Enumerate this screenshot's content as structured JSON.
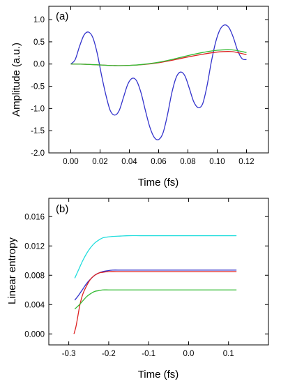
{
  "chart_data": [
    {
      "type": "line",
      "panel_label": "(a)",
      "xlabel": "Time (fs)",
      "ylabel": "Amplitude (a.u.)",
      "xlim": [
        -0.015,
        0.135
      ],
      "ylim": [
        -2.0,
        1.3
      ],
      "xticks": [
        0.0,
        0.02,
        0.04,
        0.06,
        0.08,
        0.1,
        0.12
      ],
      "xtick_labels": [
        "0.00",
        "0.02",
        "0.04",
        "0.06",
        "0.08",
        "0.10",
        "0.12"
      ],
      "yticks": [
        -2.0,
        -1.5,
        -1.0,
        -0.5,
        0.0,
        0.5,
        1.0
      ],
      "ytick_labels": [
        "-2.0",
        "-1.5",
        "-1.0",
        "-0.5",
        "0.0",
        "0.5",
        "1.0"
      ],
      "grid": false,
      "series": [
        {
          "color": "#3333cc",
          "x": [
            0.0,
            0.003,
            0.006,
            0.009,
            0.012,
            0.015,
            0.018,
            0.021,
            0.024,
            0.027,
            0.03,
            0.033,
            0.036,
            0.039,
            0.042,
            0.045,
            0.048,
            0.051,
            0.054,
            0.057,
            0.06,
            0.063,
            0.066,
            0.069,
            0.072,
            0.075,
            0.078,
            0.081,
            0.084,
            0.087,
            0.09,
            0.093,
            0.096,
            0.099,
            0.102,
            0.105,
            0.108,
            0.111,
            0.114,
            0.117,
            0.12
          ],
          "y": [
            0.0,
            0.1,
            0.4,
            0.65,
            0.72,
            0.6,
            0.25,
            -0.25,
            -0.7,
            -1.05,
            -1.15,
            -1.05,
            -0.75,
            -0.45,
            -0.32,
            -0.38,
            -0.65,
            -1.05,
            -1.42,
            -1.65,
            -1.7,
            -1.55,
            -1.15,
            -0.65,
            -0.3,
            -0.18,
            -0.27,
            -0.55,
            -0.85,
            -0.98,
            -0.9,
            -0.5,
            0.05,
            0.5,
            0.78,
            0.88,
            0.82,
            0.6,
            0.3,
            0.12,
            0.1
          ]
        },
        {
          "color": "#dd2222",
          "x": [
            0.0,
            0.01,
            0.02,
            0.03,
            0.04,
            0.05,
            0.06,
            0.07,
            0.08,
            0.09,
            0.1,
            0.11,
            0.12
          ],
          "y": [
            0.0,
            -0.005,
            -0.02,
            -0.035,
            -0.03,
            -0.01,
            0.03,
            0.09,
            0.16,
            0.22,
            0.27,
            0.28,
            0.21
          ]
        },
        {
          "color": "#33bb33",
          "x": [
            0.0,
            0.01,
            0.02,
            0.03,
            0.04,
            0.05,
            0.06,
            0.07,
            0.08,
            0.09,
            0.1,
            0.11,
            0.12
          ],
          "y": [
            0.0,
            -0.005,
            -0.02,
            -0.035,
            -0.03,
            -0.005,
            0.04,
            0.11,
            0.19,
            0.26,
            0.31,
            0.32,
            0.26
          ]
        }
      ]
    },
    {
      "type": "line",
      "panel_label": "(b)",
      "xlabel": "Time (fs)",
      "ylabel": "Linear entropy",
      "xlim": [
        -0.35,
        0.2
      ],
      "ylim": [
        -0.0015,
        0.0185
      ],
      "xticks": [
        -0.3,
        -0.2,
        -0.1,
        0.0,
        0.1
      ],
      "xtick_labels": [
        "-0.3",
        "-0.2",
        "-0.1",
        "0.0",
        "0.1"
      ],
      "yticks": [
        0.0,
        0.004,
        0.008,
        0.012,
        0.016
      ],
      "ytick_labels": [
        "0.000",
        "0.004",
        "0.008",
        "0.012",
        "0.016"
      ],
      "grid": false,
      "series": [
        {
          "color": "#22dddd",
          "x": [
            -0.285,
            -0.275,
            -0.265,
            -0.255,
            -0.245,
            -0.235,
            -0.225,
            -0.215,
            -0.205,
            -0.19,
            -0.17,
            -0.15,
            -0.12,
            -0.08,
            0.0,
            0.12
          ],
          "y": [
            0.0076,
            0.0088,
            0.01,
            0.011,
            0.0118,
            0.0124,
            0.0128,
            0.0131,
            0.0132,
            0.0133,
            0.01335,
            0.0134,
            0.0134,
            0.0134,
            0.0134,
            0.0134
          ]
        },
        {
          "color": "#3333cc",
          "x": [
            -0.285,
            -0.275,
            -0.265,
            -0.255,
            -0.245,
            -0.235,
            -0.225,
            -0.215,
            -0.205,
            -0.19,
            -0.17,
            -0.15,
            -0.12,
            -0.08,
            0.0,
            0.12
          ],
          "y": [
            0.0046,
            0.0053,
            0.0061,
            0.0069,
            0.0075,
            0.008,
            0.0083,
            0.0085,
            0.0086,
            0.0087,
            0.0087,
            0.0087,
            0.0087,
            0.0087,
            0.0087,
            0.0087
          ]
        },
        {
          "color": "#dd2222",
          "x": [
            -0.287,
            -0.282,
            -0.277,
            -0.272,
            -0.265,
            -0.255,
            -0.245,
            -0.235,
            -0.225,
            -0.215,
            -0.2,
            -0.18,
            -0.15,
            -0.1,
            0.0,
            0.12
          ],
          "y": [
            0.0,
            0.001,
            0.0025,
            0.004,
            0.0054,
            0.0066,
            0.0075,
            0.008,
            0.0083,
            0.0084,
            0.0085,
            0.0085,
            0.0085,
            0.0085,
            0.0085,
            0.0085
          ]
        },
        {
          "color": "#33bb33",
          "x": [
            -0.285,
            -0.275,
            -0.265,
            -0.255,
            -0.245,
            -0.235,
            -0.225,
            -0.215,
            -0.2,
            -0.18,
            -0.15,
            -0.1,
            0.0,
            0.12
          ],
          "y": [
            0.0034,
            0.0039,
            0.0045,
            0.0051,
            0.0055,
            0.0058,
            0.0059,
            0.006,
            0.006,
            0.006,
            0.006,
            0.006,
            0.006,
            0.006
          ]
        }
      ]
    }
  ]
}
